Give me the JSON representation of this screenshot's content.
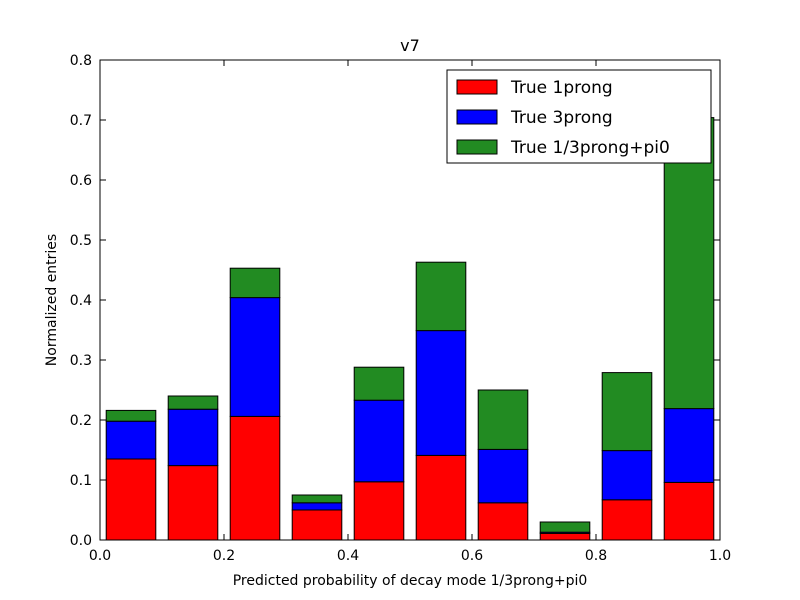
{
  "chart_data": {
    "type": "bar",
    "stacked": true,
    "title": "v7",
    "xlabel": "Predicted probability of decay mode 1/3prong+pi0",
    "ylabel": "Normalized entries",
    "xlim": [
      0.0,
      1.0
    ],
    "ylim": [
      0.0,
      0.8
    ],
    "xticks": [
      "0.0",
      "0.2",
      "0.4",
      "0.6",
      "0.8",
      "1.0"
    ],
    "yticks": [
      "0.0",
      "0.1",
      "0.2",
      "0.3",
      "0.4",
      "0.5",
      "0.6",
      "0.7",
      "0.8"
    ],
    "grid": false,
    "legend_position": "top-right",
    "bins": [
      0.05,
      0.15,
      0.25,
      0.35,
      0.45,
      0.55,
      0.65,
      0.75,
      0.85,
      0.95
    ],
    "bar_width": 0.08,
    "series": [
      {
        "name": "True 1prong",
        "color": "#ff0000",
        "values": [
          0.135,
          0.124,
          0.206,
          0.05,
          0.097,
          0.141,
          0.062,
          0.011,
          0.067,
          0.096
        ]
      },
      {
        "name": "True 3prong",
        "color": "#0000ff",
        "values": [
          0.063,
          0.094,
          0.198,
          0.012,
          0.136,
          0.208,
          0.089,
          0.002,
          0.082,
          0.123
        ]
      },
      {
        "name": "True 1/3prong+pi0",
        "color": "#228b22",
        "values": [
          0.018,
          0.022,
          0.049,
          0.013,
          0.055,
          0.114,
          0.099,
          0.017,
          0.13,
          0.485
        ]
      }
    ]
  }
}
